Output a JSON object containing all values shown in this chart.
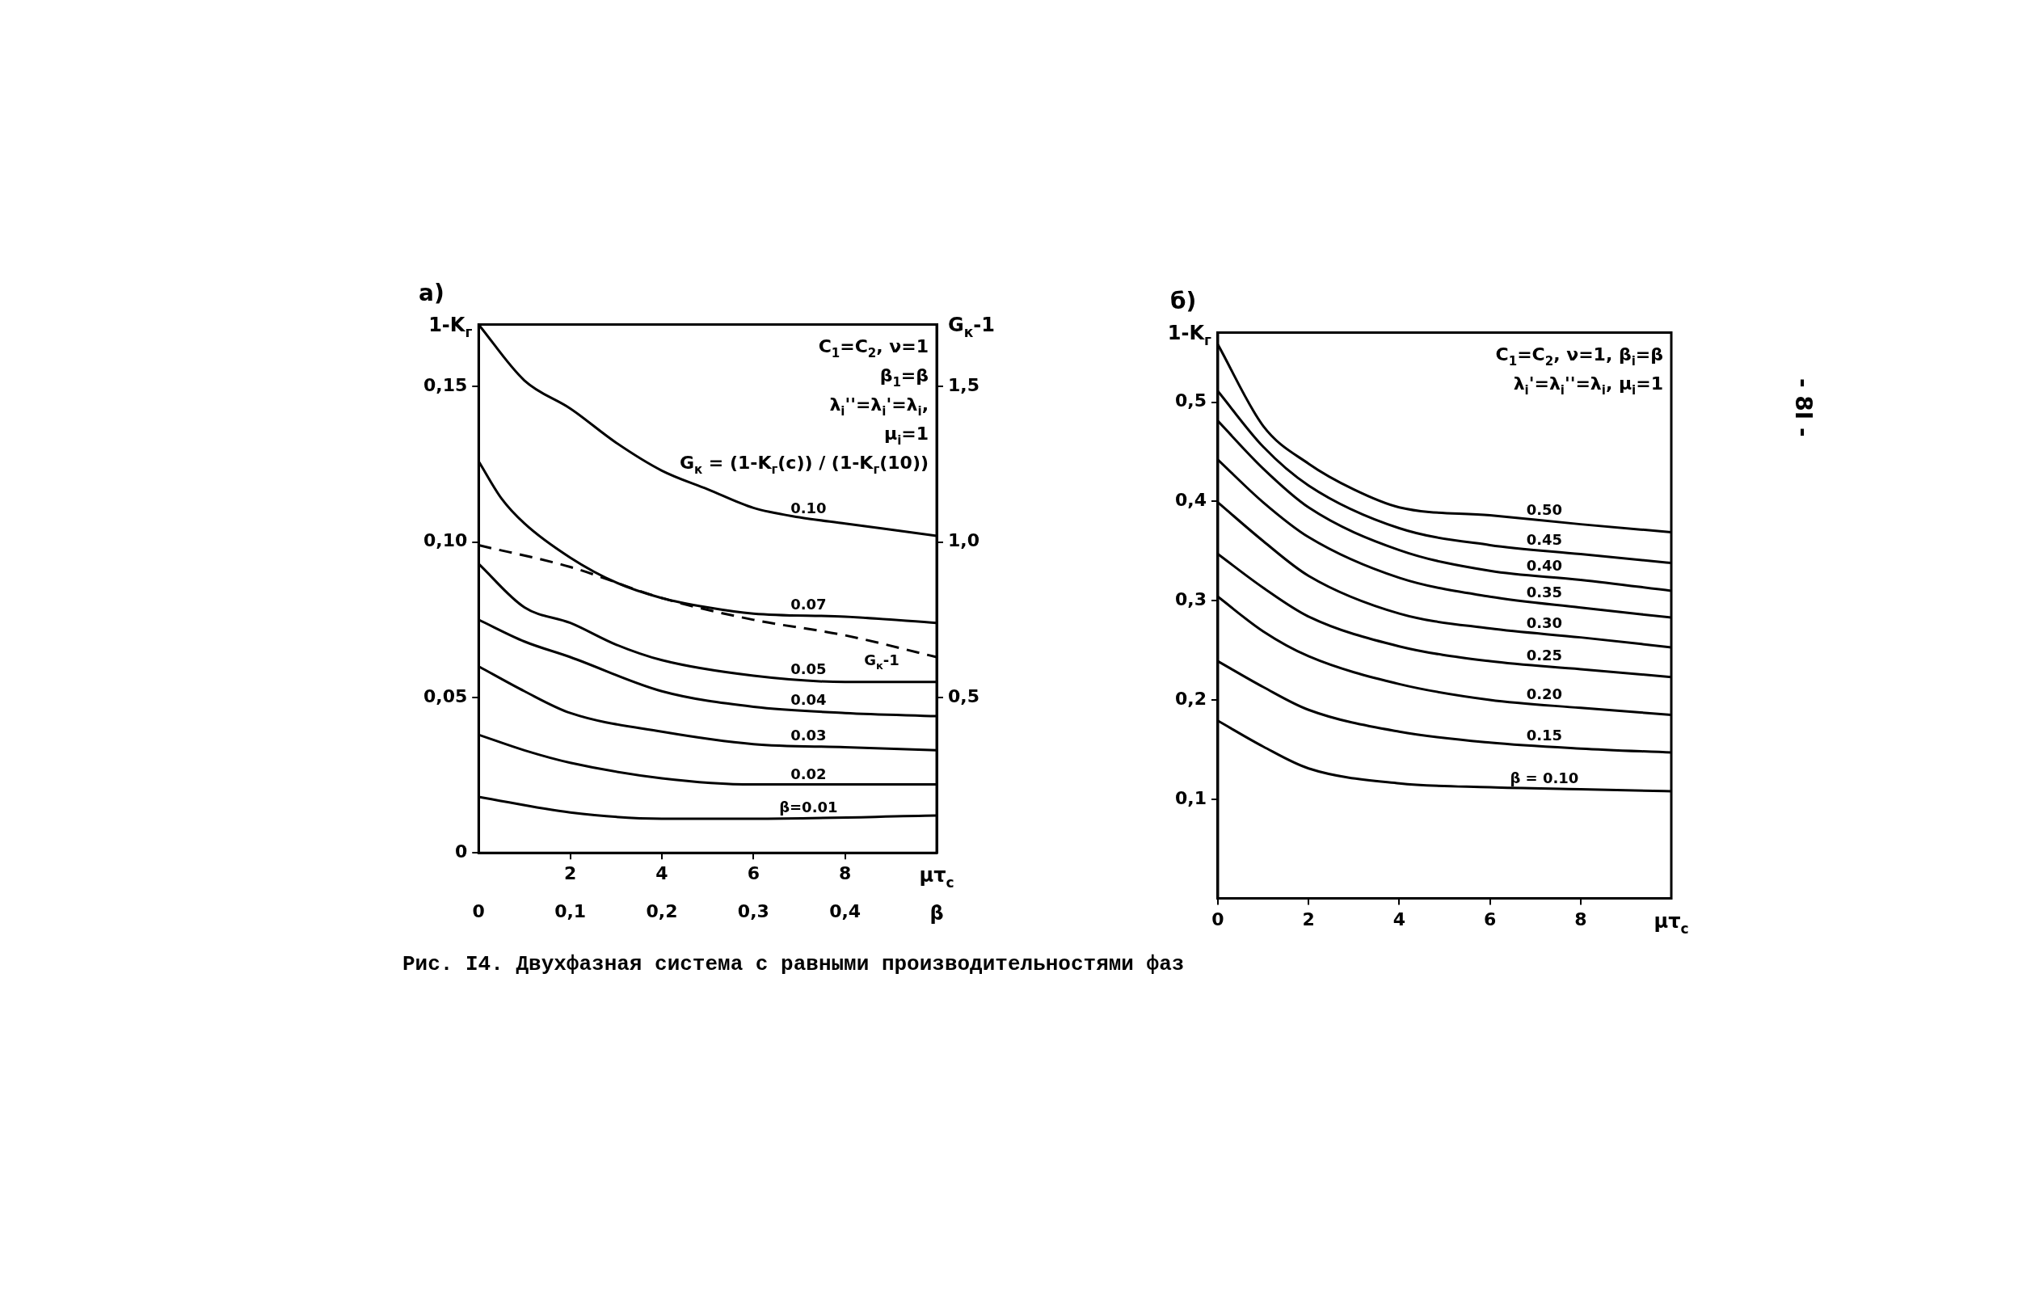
{
  "chart_data": [
    {
      "type": "line",
      "title": "а)",
      "ylabel": "1-K$_{г}$",
      "y2label": "G$_{к}$-1",
      "xlabel": "μτ$_{c}$",
      "x2label": "β",
      "xlim": [
        0,
        10
      ],
      "xticks": [
        2,
        4,
        6,
        8
      ],
      "x2lim": [
        0,
        0.5
      ],
      "x2ticks": [
        0,
        {
          "value": 0.1,
          "label": "0,1"
        },
        {
          "value": 0.2,
          "label": "0,2"
        },
        {
          "value": 0.3,
          "label": "0,3"
        },
        {
          "value": 0.4,
          "label": "0,4"
        }
      ],
      "ylim": [
        0,
        0.17
      ],
      "yticks": [
        0,
        {
          "value": 0.05,
          "label": "0,05"
        },
        {
          "value": 0.1,
          "label": "0,10"
        },
        {
          "value": 0.15,
          "label": "0,15"
        }
      ],
      "y2lim": [
        0,
        1.7
      ],
      "y2ticks": [
        {
          "value": 0.5,
          "label": "0,5"
        },
        {
          "value": 1,
          "label": "1,0"
        },
        {
          "value": 1.5,
          "label": "1,5"
        }
      ],
      "series": [
        {
          "name": "0.10",
          "color": "#000000",
          "x": [
            0,
            1,
            2,
            3,
            4,
            5,
            6,
            7,
            8,
            10
          ],
          "values": [
            0.17,
            0.152,
            0.143,
            0.132,
            0.123,
            0.117,
            0.111,
            0.108,
            0.106,
            0.102
          ]
        },
        {
          "name": "0.07",
          "color": "#000000",
          "x": [
            0,
            0.5,
            1,
            2,
            3,
            4,
            5,
            6,
            8,
            10
          ],
          "values": [
            0.126,
            0.114,
            0.106,
            0.095,
            0.087,
            0.082,
            0.079,
            0.077,
            0.076,
            0.074
          ]
        },
        {
          "name": "0.05",
          "color": "#000000",
          "x": [
            0,
            1,
            2,
            3,
            4,
            6,
            8,
            10
          ],
          "values": [
            0.093,
            0.079,
            0.074,
            0.067,
            0.062,
            0.057,
            0.055,
            0.055
          ]
        },
        {
          "name": "0.04",
          "color": "#000000",
          "x": [
            0,
            1,
            2,
            4,
            6,
            8,
            10
          ],
          "values": [
            0.075,
            0.068,
            0.063,
            0.052,
            0.047,
            0.045,
            0.044
          ]
        },
        {
          "name": "0.03",
          "color": "#000000",
          "x": [
            0,
            1,
            2,
            4,
            6,
            8,
            10
          ],
          "values": [
            0.06,
            0.052,
            0.045,
            0.039,
            0.035,
            0.034,
            0.033
          ]
        },
        {
          "name": "0.02",
          "color": "#000000",
          "x": [
            0,
            1,
            2,
            4,
            6,
            8,
            10
          ],
          "values": [
            0.038,
            0.033,
            0.029,
            0.024,
            0.022,
            0.022,
            0.022
          ]
        },
        {
          "name": "β=0.01",
          "color": "#000000",
          "x": [
            0,
            2,
            4,
            6,
            10
          ],
          "values": [
            0.018,
            0.013,
            0.011,
            0.011,
            0.012
          ]
        },
        {
          "name": "G$_{к}$-1",
          "color": "#000000",
          "axis": "y2",
          "line_style": "dashed",
          "x": [
            0,
            2,
            4,
            6,
            8,
            10
          ],
          "values": [
            0.99,
            0.92,
            0.82,
            0.75,
            0.7,
            0.63
          ]
        }
      ],
      "annotations": [
        "C$_{1}$=C$_{2}$, ν=1",
        "β$_{1}$=β",
        "λ$_{i}$''=λ$_{i}$'=λ$_{i}$,",
        "μ$_{i}$=1",
        "G$_{к}$ = (1-K$_{г}$(c)) / (1-K$_{г}$(10))",
        "Рис. I4. Двухфазная система с равными производительностями фаз"
      ]
    },
    {
      "type": "line",
      "title": "б)",
      "ylabel": "1-K$_{г}$",
      "xlabel": "μτ$_{c}$",
      "xlim": [
        0,
        10
      ],
      "xticks": [
        0,
        2,
        4,
        6,
        8
      ],
      "ylim": [
        0,
        0.57
      ],
      "yticks": [
        {
          "value": 0.1,
          "label": "0,1"
        },
        {
          "value": 0.2,
          "label": "0,2"
        },
        {
          "value": 0.3,
          "label": "0,3"
        },
        {
          "value": 0.4,
          "label": "0,4"
        },
        {
          "value": 0.5,
          "label": "0,5"
        }
      ],
      "series": [
        {
          "name": "0.50",
          "color": "#000000",
          "x": [
            0,
            1,
            2,
            3,
            4,
            6,
            8,
            10
          ],
          "values": [
            0.558,
            0.476,
            0.438,
            0.412,
            0.394,
            0.386,
            0.377,
            0.369
          ]
        },
        {
          "name": "0.45",
          "color": "#000000",
          "x": [
            0,
            1,
            2,
            4,
            6,
            8,
            10
          ],
          "values": [
            0.511,
            0.455,
            0.416,
            0.373,
            0.356,
            0.347,
            0.338
          ]
        },
        {
          "name": "0.40",
          "color": "#000000",
          "x": [
            0,
            1,
            2,
            4,
            6,
            8,
            10
          ],
          "values": [
            0.481,
            0.433,
            0.394,
            0.351,
            0.33,
            0.321,
            0.31
          ]
        },
        {
          "name": "0.35",
          "color": "#000000",
          "x": [
            0,
            1,
            2,
            4,
            6,
            8,
            10
          ],
          "values": [
            0.442,
            0.399,
            0.364,
            0.323,
            0.304,
            0.293,
            0.283
          ]
        },
        {
          "name": "0.30",
          "color": "#000000",
          "x": [
            0,
            1,
            2,
            4,
            6,
            8,
            10
          ],
          "values": [
            0.399,
            0.36,
            0.325,
            0.287,
            0.272,
            0.263,
            0.253
          ]
        },
        {
          "name": "0.25",
          "color": "#000000",
          "x": [
            0,
            1,
            2,
            4,
            6,
            8,
            10
          ],
          "values": [
            0.347,
            0.313,
            0.284,
            0.254,
            0.239,
            0.231,
            0.223
          ]
        },
        {
          "name": "0.20",
          "color": "#000000",
          "x": [
            0,
            1,
            2,
            4,
            6,
            8,
            10
          ],
          "values": [
            0.304,
            0.269,
            0.244,
            0.216,
            0.2,
            0.192,
            0.185
          ]
        },
        {
          "name": "0.15",
          "color": "#000000",
          "x": [
            0,
            1,
            2,
            4,
            6,
            8,
            10
          ],
          "values": [
            0.239,
            0.213,
            0.19,
            0.168,
            0.157,
            0.151,
            0.147
          ]
        },
        {
          "name": "β = 0.10",
          "color": "#000000",
          "x": [
            0,
            1,
            2,
            4,
            6,
            8,
            10
          ],
          "values": [
            0.179,
            0.153,
            0.131,
            0.116,
            0.112,
            0.11,
            0.108
          ]
        }
      ],
      "annotations": [
        "C$_{1}$=C$_{2}$, ν=1, β$_{i}$=β",
        "λ$_{i}$'=λ$_{i}$''=λ$_{i}$, μ$_{i}$=1",
        "- 8I -"
      ]
    }
  ]
}
